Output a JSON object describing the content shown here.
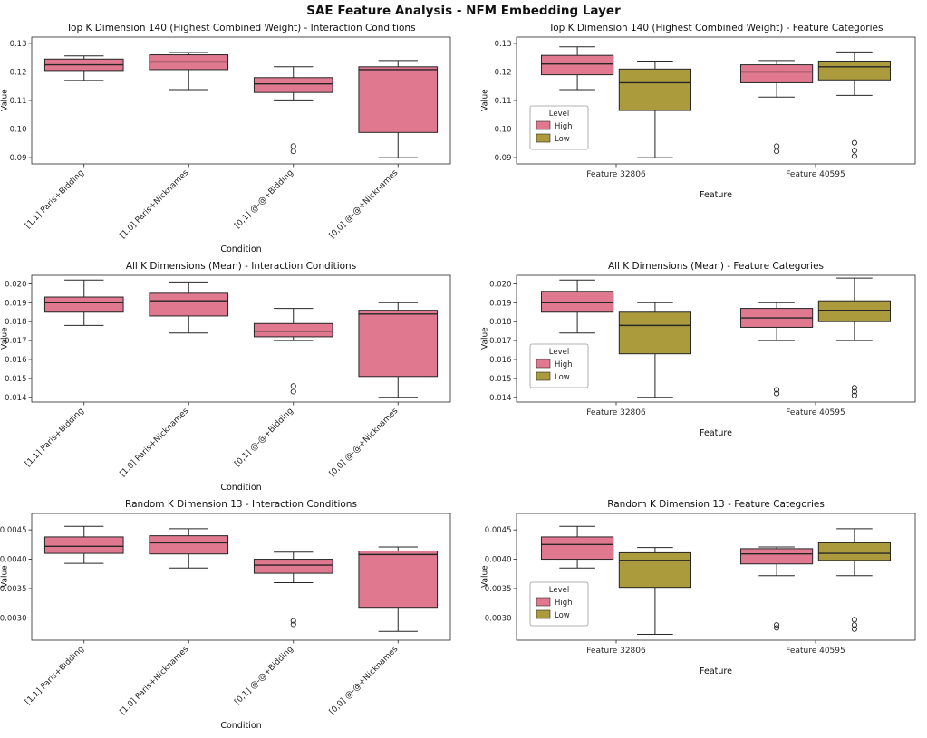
{
  "figure_title": "SAE Feature Analysis - NFM Embedding Layer",
  "colors": {
    "high": "#e0798f",
    "low": "#ab9b3c"
  },
  "legend": {
    "title": "Level",
    "entries": [
      {
        "label": "High",
        "color": "high"
      },
      {
        "label": "Low",
        "color": "low"
      }
    ]
  },
  "chart_data": [
    {
      "type": "boxplot",
      "title": "Top K Dimension 140 (Highest Combined Weight) - Interaction Conditions",
      "xlabel": "Condition",
      "ylabel": "Value",
      "ylim": [
        0.0878,
        0.1322
      ],
      "ytick_values": [
        0.09,
        0.1,
        0.11,
        0.12,
        0.13
      ],
      "ytick_labels": [
        "0.09",
        "0.10",
        "0.11",
        "0.12",
        "0.13"
      ],
      "categories": [
        "[1,1] Paris+Bidding",
        "[1,0] Paris+Nicknames",
        "[0,1] @-@+Bidding",
        "[0,0] @-@+Nicknames"
      ],
      "legend": false,
      "series": [
        {
          "name": "High",
          "color": "high",
          "boxes": [
            {
              "whislo": 0.117,
              "q1": 0.1205,
              "med": 0.1225,
              "q3": 0.1245,
              "whishi": 0.1256,
              "outliers": []
            },
            {
              "whislo": 0.1138,
              "q1": 0.1208,
              "med": 0.1235,
              "q3": 0.126,
              "whishi": 0.1268,
              "outliers": []
            },
            {
              "whislo": 0.1102,
              "q1": 0.1128,
              "med": 0.1158,
              "q3": 0.118,
              "whishi": 0.1218,
              "outliers": [
                0.094,
                0.0922
              ]
            },
            {
              "whislo": 0.09,
              "q1": 0.0988,
              "med": 0.1208,
              "q3": 0.1218,
              "whishi": 0.124,
              "outliers": []
            }
          ]
        }
      ]
    },
    {
      "type": "boxplot",
      "title": "Top K Dimension 140 (Highest Combined Weight) - Feature Categories",
      "xlabel": "Feature",
      "ylabel": "Value",
      "ylim": [
        0.0878,
        0.1322
      ],
      "ytick_values": [
        0.09,
        0.1,
        0.11,
        0.12,
        0.13
      ],
      "ytick_labels": [
        "0.09",
        "0.10",
        "0.11",
        "0.12",
        "0.13"
      ],
      "categories": [
        "Feature 32806",
        "Feature 40595"
      ],
      "legend": true,
      "series": [
        {
          "name": "High",
          "color": "high",
          "boxes": [
            {
              "whislo": 0.1138,
              "q1": 0.119,
              "med": 0.1228,
              "q3": 0.1258,
              "whishi": 0.1288,
              "outliers": []
            },
            {
              "whislo": 0.1112,
              "q1": 0.1162,
              "med": 0.12,
              "q3": 0.1225,
              "whishi": 0.124,
              "outliers": [
                0.094,
                0.0922
              ]
            }
          ]
        },
        {
          "name": "Low",
          "color": "low",
          "boxes": [
            {
              "whislo": 0.09,
              "q1": 0.1065,
              "med": 0.1162,
              "q3": 0.121,
              "whishi": 0.1238,
              "outliers": []
            },
            {
              "whislo": 0.1118,
              "q1": 0.1172,
              "med": 0.1218,
              "q3": 0.1238,
              "whishi": 0.127,
              "outliers": [
                0.0952,
                0.0925,
                0.0905
              ]
            }
          ]
        }
      ]
    },
    {
      "type": "boxplot",
      "title": "All K Dimensions (Mean) - Interaction Conditions",
      "xlabel": "Condition",
      "ylabel": "Value",
      "ylim": [
        0.01375,
        0.02045
      ],
      "ytick_values": [
        0.014,
        0.015,
        0.016,
        0.017,
        0.018,
        0.019,
        0.02
      ],
      "ytick_labels": [
        "0.014",
        "0.015",
        "0.016",
        "0.017",
        "0.018",
        "0.019",
        "0.020"
      ],
      "categories": [
        "[1,1] Paris+Bidding",
        "[1,0] Paris+Nicknames",
        "[0,1] @-@+Bidding",
        "[0,0] @-@+Nicknames"
      ],
      "legend": false,
      "series": [
        {
          "name": "High",
          "color": "high",
          "boxes": [
            {
              "whislo": 0.0178,
              "q1": 0.0185,
              "med": 0.019,
              "q3": 0.0193,
              "whishi": 0.0202,
              "outliers": []
            },
            {
              "whislo": 0.0174,
              "q1": 0.0183,
              "med": 0.0191,
              "q3": 0.0195,
              "whishi": 0.0201,
              "outliers": []
            },
            {
              "whislo": 0.017,
              "q1": 0.0172,
              "med": 0.0175,
              "q3": 0.0179,
              "whishi": 0.0187,
              "outliers": [
                0.0146,
                0.0143
              ]
            },
            {
              "whislo": 0.014,
              "q1": 0.0151,
              "med": 0.0184,
              "q3": 0.0186,
              "whishi": 0.019,
              "outliers": []
            }
          ]
        }
      ]
    },
    {
      "type": "boxplot",
      "title": "All K Dimensions (Mean) - Feature Categories",
      "xlabel": "Feature",
      "ylabel": "Value",
      "ylim": [
        0.01375,
        0.02045
      ],
      "ytick_values": [
        0.014,
        0.015,
        0.016,
        0.017,
        0.018,
        0.019,
        0.02
      ],
      "ytick_labels": [
        "0.014",
        "0.015",
        "0.016",
        "0.017",
        "0.018",
        "0.019",
        "0.020"
      ],
      "categories": [
        "Feature 32806",
        "Feature 40595"
      ],
      "legend": true,
      "series": [
        {
          "name": "High",
          "color": "high",
          "boxes": [
            {
              "whislo": 0.0174,
              "q1": 0.0185,
              "med": 0.019,
              "q3": 0.0196,
              "whishi": 0.0202,
              "outliers": []
            },
            {
              "whislo": 0.017,
              "q1": 0.0177,
              "med": 0.0182,
              "q3": 0.0187,
              "whishi": 0.019,
              "outliers": [
                0.0144,
                0.0142
              ]
            }
          ]
        },
        {
          "name": "Low",
          "color": "low",
          "boxes": [
            {
              "whislo": 0.014,
              "q1": 0.0163,
              "med": 0.0178,
              "q3": 0.0185,
              "whishi": 0.019,
              "outliers": []
            },
            {
              "whislo": 0.017,
              "q1": 0.018,
              "med": 0.0186,
              "q3": 0.0191,
              "whishi": 0.0203,
              "outliers": [
                0.0145,
                0.0143,
                0.0141
              ]
            }
          ]
        }
      ]
    },
    {
      "type": "boxplot",
      "title": "Random K Dimension 13 - Interaction Conditions",
      "xlabel": "Condition",
      "ylabel": "Value",
      "ylim": [
        0.00262,
        0.00478
      ],
      "ytick_values": [
        0.003,
        0.0035,
        0.004,
        0.0045
      ],
      "ytick_labels": [
        "0.0030",
        "0.0035",
        "0.0040",
        "0.0045"
      ],
      "categories": [
        "[1,1] Paris+Bidding",
        "[1,0] Paris+Nicknames",
        "[0,1] @-@+Bidding",
        "[0,0] @-@+Nicknames"
      ],
      "legend": false,
      "series": [
        {
          "name": "High",
          "color": "high",
          "boxes": [
            {
              "whislo": 0.00393,
              "q1": 0.0041,
              "med": 0.00422,
              "q3": 0.00438,
              "whishi": 0.00456,
              "outliers": []
            },
            {
              "whislo": 0.00385,
              "q1": 0.00409,
              "med": 0.00428,
              "q3": 0.0044,
              "whishi": 0.00452,
              "outliers": []
            },
            {
              "whislo": 0.0036,
              "q1": 0.00376,
              "med": 0.0039,
              "q3": 0.004,
              "whishi": 0.00412,
              "outliers": [
                0.00295,
                0.00289
              ]
            },
            {
              "whislo": 0.00277,
              "q1": 0.00318,
              "med": 0.00408,
              "q3": 0.00414,
              "whishi": 0.00421,
              "outliers": []
            }
          ]
        }
      ]
    },
    {
      "type": "boxplot",
      "title": "Random K Dimension 13 - Feature Categories",
      "xlabel": "Feature",
      "ylabel": "Value",
      "ylim": [
        0.00262,
        0.00478
      ],
      "ytick_values": [
        0.003,
        0.0035,
        0.004,
        0.0045
      ],
      "ytick_labels": [
        "0.0030",
        "0.0035",
        "0.0040",
        "0.0045"
      ],
      "categories": [
        "Feature 32806",
        "Feature 40595"
      ],
      "legend": true,
      "series": [
        {
          "name": "High",
          "color": "high",
          "boxes": [
            {
              "whislo": 0.00385,
              "q1": 0.004,
              "med": 0.00425,
              "q3": 0.00438,
              "whishi": 0.00456,
              "outliers": []
            },
            {
              "whislo": 0.00372,
              "q1": 0.00392,
              "med": 0.00409,
              "q3": 0.00418,
              "whishi": 0.00421,
              "outliers": [
                0.00288,
                0.00283
              ]
            }
          ]
        },
        {
          "name": "Low",
          "color": "low",
          "boxes": [
            {
              "whislo": 0.00272,
              "q1": 0.00352,
              "med": 0.00398,
              "q3": 0.00411,
              "whishi": 0.0042,
              "outliers": []
            },
            {
              "whislo": 0.00372,
              "q1": 0.00398,
              "med": 0.0041,
              "q3": 0.00428,
              "whishi": 0.00452,
              "outliers": [
                0.00297,
                0.00288,
                0.00281
              ]
            }
          ]
        }
      ]
    }
  ]
}
